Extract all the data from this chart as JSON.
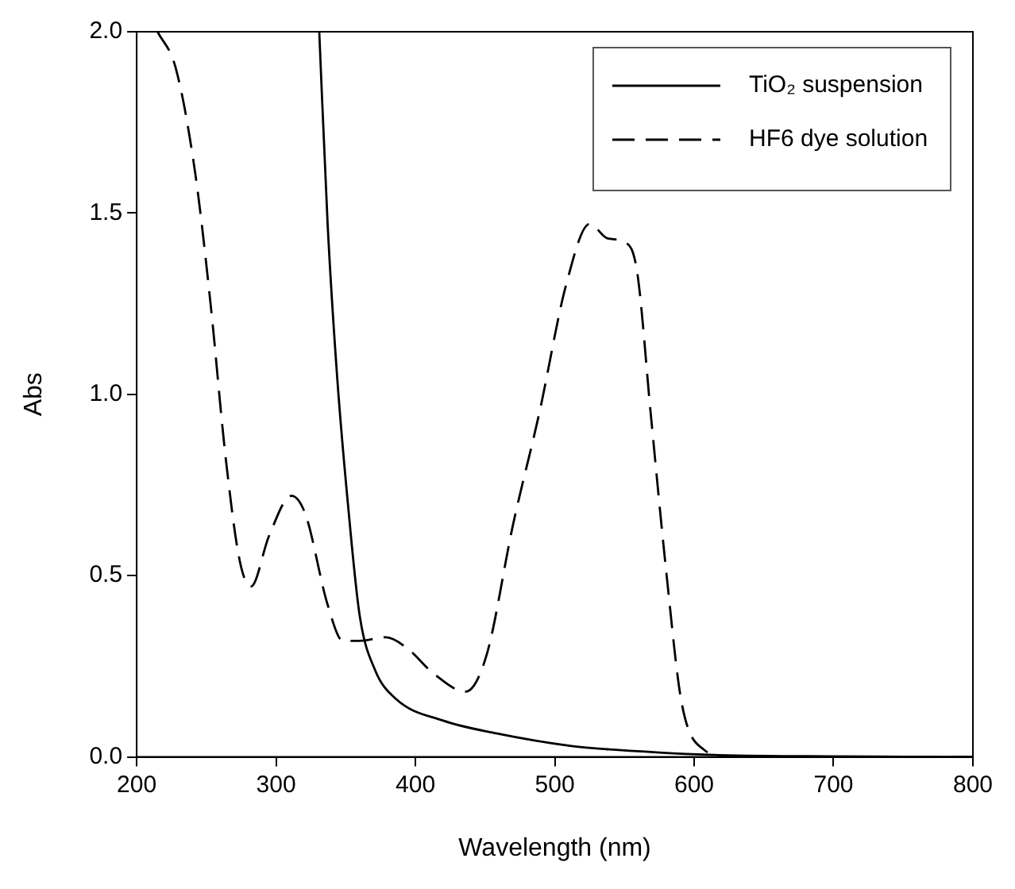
{
  "chart_data": {
    "type": "line",
    "xlabel": "Wavelength (nm)",
    "ylabel": "Abs",
    "xlim": [
      200,
      800
    ],
    "xticks": [
      200,
      300,
      400,
      500,
      600,
      700,
      800
    ],
    "ylim": [
      0,
      2.0
    ],
    "yticks": [
      {
        "value": 0,
        "label": "0.0"
      },
      {
        "value": 0.5,
        "label": "0.5"
      },
      {
        "value": 1.0,
        "label": "1.0"
      },
      {
        "value": 1.5,
        "label": "1.5"
      },
      {
        "value": 2.0,
        "label": "2.0"
      }
    ],
    "grid": false,
    "legend": "top right",
    "marker": "none",
    "series": [
      {
        "name": "TiO₂ suspension",
        "color": "#000000",
        "line_style": "solid",
        "x": [
          331,
          337,
          344,
          352,
          360,
          371,
          386,
          420,
          458,
          512,
          542,
          618,
          800
        ],
        "values": [
          2.0,
          1.47,
          1.04,
          0.68,
          0.39,
          0.24,
          0.16,
          0.1,
          0.065,
          0.03,
          0.02,
          0.005,
          0
        ]
      },
      {
        "name": "HF6 dye solution",
        "color": "#000000",
        "line_style": "dashed",
        "x": [
          215,
          228,
          242,
          253,
          264,
          274,
          282,
          295,
          311,
          321,
          337,
          348,
          360,
          379,
          394,
          413,
          436,
          451,
          470,
          489,
          508,
          525,
          538,
          550,
          559,
          569,
          580,
          591,
          607,
          626,
          700,
          800
        ],
        "values": [
          2.0,
          1.9,
          1.61,
          1.25,
          0.82,
          0.54,
          0.47,
          0.61,
          0.72,
          0.67,
          0.42,
          0.32,
          0.32,
          0.33,
          0.3,
          0.23,
          0.18,
          0.28,
          0.64,
          0.95,
          1.3,
          1.47,
          1.43,
          1.42,
          1.34,
          0.94,
          0.51,
          0.15,
          0.02,
          0,
          0,
          0
        ]
      }
    ]
  }
}
